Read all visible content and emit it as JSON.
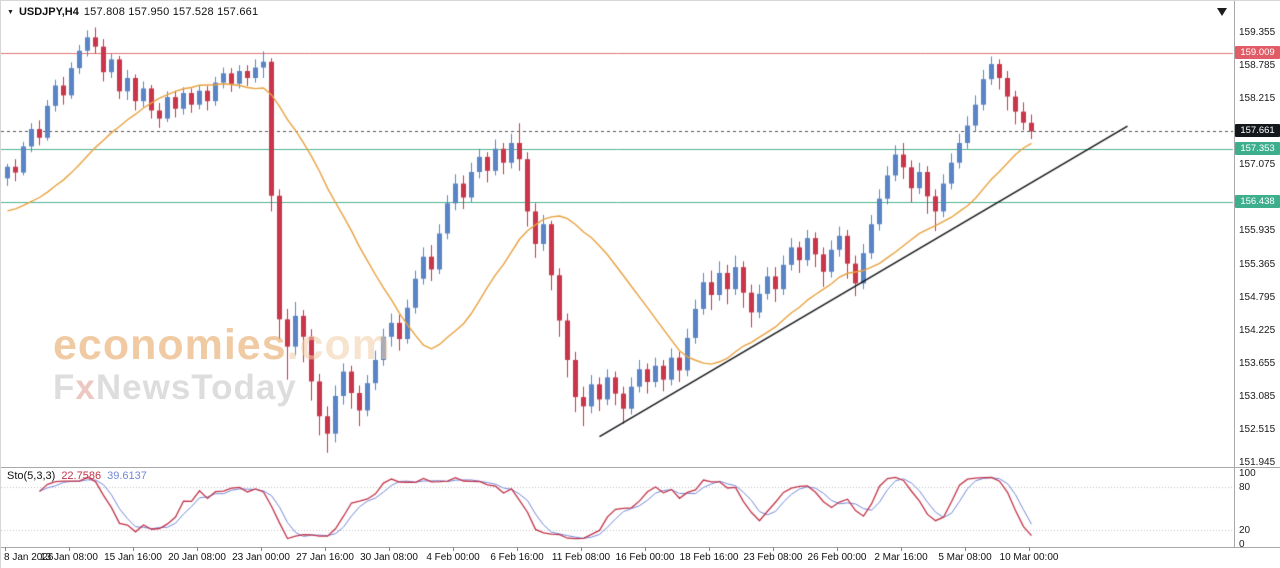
{
  "header": {
    "symbol": "USDJPY,H4",
    "ohlc": "157.808 157.950 157.528 157.661"
  },
  "watermark": {
    "brand": "economies",
    "brand_suffix": ".com",
    "sub_f": "F",
    "sub_x": "x",
    "sub_rest": "NewsToday"
  },
  "indicator": {
    "label": "Sto(5,3,3)",
    "value_main": "22.7586",
    "value_signal": "39.6137"
  },
  "chart_data": {
    "type": "candlestick",
    "title": "USDJPY,H4",
    "symbol": "USDJPY",
    "timeframe": "H4",
    "last_candle": {
      "open": "157.808",
      "high": "157.950",
      "low": "157.528",
      "close": "157.661"
    },
    "colors": {
      "up": "#5b84c6",
      "down": "#c9354b",
      "ma": "#e9a13e",
      "trend": "#15181c",
      "current_line": "#555555",
      "level_dotted": "#c0c0c0",
      "stoch_main": "#c2334a",
      "stoch_signal": "#7388d9"
    },
    "price_axis": {
      "max": 159.769,
      "min": 151.927,
      "ticks": [
        "159.355",
        "158.785",
        "158.215",
        "157.075",
        "155.935",
        "155.365",
        "154.795",
        "154.225",
        "153.655",
        "153.085",
        "152.515",
        "151.945"
      ],
      "badges": [
        {
          "text": "159.009",
          "color": "#e05c66"
        },
        {
          "text": "157.661",
          "color": "#14181c"
        },
        {
          "text": "157.353",
          "color": "#3eaf8c"
        },
        {
          "text": "156.438",
          "color": "#3eaf8c"
        }
      ]
    },
    "time_axis": {
      "label_every": 8,
      "labels": [
        "8 Jan 2026",
        "13 Jan 08:00",
        "15 Jan 16:00",
        "20 Jan 08:00",
        "23 Jan 00:00",
        "27 Jan 16:00",
        "30 Jan 08:00",
        "4 Feb 00:00",
        "6 Feb 16:00",
        "11 Feb 08:00",
        "16 Feb 00:00",
        "18 Feb 16:00",
        "23 Feb 08:00",
        "26 Feb 00:00",
        "2 Mar 16:00",
        "5 Mar 08:00",
        "10 Mar 00:00"
      ]
    },
    "overlays": {
      "ma": {
        "type": "sma",
        "period": 20,
        "seed": 156.25,
        "color": "#e9a13e"
      },
      "trendline": {
        "from": {
          "index": 74,
          "price": 152.4
        },
        "to": {
          "index": 140,
          "price": 157.75
        }
      },
      "hlines": [
        {
          "price": 159.009,
          "color": "#e57373"
        },
        {
          "price": 157.353,
          "color": "#4db391"
        },
        {
          "price": 156.438,
          "color": "#4db391"
        }
      ],
      "current_price": 157.661
    },
    "stochastic": {
      "k": 5,
      "d": 3,
      "slowing": 3,
      "scale_min": 0,
      "scale_max": 100,
      "levels": [
        80,
        20
      ],
      "axis_labels": [
        "100",
        "80",
        "20",
        "0"
      ],
      "axis_values": [
        100,
        80,
        20,
        0
      ],
      "current_main": "22.7586",
      "current_signal": "39.6137"
    },
    "candles": [
      [
        156.85,
        157.1,
        156.72,
        157.05
      ],
      [
        157.05,
        157.18,
        156.8,
        156.95
      ],
      [
        156.95,
        157.48,
        156.9,
        157.4
      ],
      [
        157.4,
        157.8,
        157.3,
        157.7
      ],
      [
        157.7,
        157.85,
        157.42,
        157.55
      ],
      [
        157.55,
        158.2,
        157.5,
        158.1
      ],
      [
        158.1,
        158.55,
        158.0,
        158.45
      ],
      [
        158.45,
        158.6,
        158.12,
        158.28
      ],
      [
        158.28,
        158.85,
        158.22,
        158.75
      ],
      [
        158.75,
        159.15,
        158.65,
        159.05
      ],
      [
        159.05,
        159.4,
        158.95,
        159.28
      ],
      [
        159.28,
        159.45,
        159.0,
        159.12
      ],
      [
        159.12,
        159.25,
        158.52,
        158.68
      ],
      [
        158.68,
        159.0,
        158.58,
        158.9
      ],
      [
        158.9,
        158.96,
        158.22,
        158.35
      ],
      [
        158.35,
        158.72,
        158.2,
        158.58
      ],
      [
        158.58,
        158.64,
        158.02,
        158.18
      ],
      [
        158.18,
        158.52,
        158.08,
        158.4
      ],
      [
        158.4,
        158.46,
        157.88,
        158.02
      ],
      [
        158.02,
        158.15,
        157.72,
        157.88
      ],
      [
        157.88,
        158.35,
        157.82,
        158.25
      ],
      [
        158.25,
        158.36,
        157.9,
        158.05
      ],
      [
        158.05,
        158.42,
        157.95,
        158.32
      ],
      [
        158.32,
        158.4,
        157.98,
        158.12
      ],
      [
        158.12,
        158.46,
        158.04,
        158.36
      ],
      [
        158.36,
        158.44,
        158.02,
        158.18
      ],
      [
        158.18,
        158.6,
        158.1,
        158.5
      ],
      [
        158.5,
        158.76,
        158.4,
        158.66
      ],
      [
        158.66,
        158.75,
        158.34,
        158.48
      ],
      [
        158.48,
        158.8,
        158.4,
        158.7
      ],
      [
        158.7,
        158.8,
        158.44,
        158.58
      ],
      [
        158.58,
        158.9,
        158.5,
        158.76
      ],
      [
        158.76,
        159.04,
        158.58,
        158.86
      ],
      [
        158.86,
        158.92,
        156.28,
        156.55
      ],
      [
        156.55,
        156.66,
        154.08,
        154.42
      ],
      [
        154.42,
        154.6,
        153.38,
        153.95
      ],
      [
        153.95,
        154.72,
        153.8,
        154.48
      ],
      [
        154.48,
        154.58,
        153.68,
        154.12
      ],
      [
        154.12,
        154.25,
        153.02,
        153.35
      ],
      [
        153.35,
        153.48,
        152.42,
        152.75
      ],
      [
        152.75,
        152.92,
        152.12,
        152.45
      ],
      [
        152.45,
        153.28,
        152.3,
        153.1
      ],
      [
        153.1,
        153.66,
        152.95,
        153.52
      ],
      [
        153.52,
        153.62,
        152.88,
        153.15
      ],
      [
        153.15,
        153.28,
        152.58,
        152.85
      ],
      [
        152.85,
        153.46,
        152.75,
        153.32
      ],
      [
        153.32,
        153.88,
        153.2,
        153.72
      ],
      [
        153.72,
        154.26,
        153.62,
        154.12
      ],
      [
        154.12,
        154.52,
        153.95,
        154.36
      ],
      [
        154.36,
        154.5,
        153.88,
        154.08
      ],
      [
        154.08,
        154.76,
        154.0,
        154.62
      ],
      [
        154.62,
        155.26,
        154.52,
        155.12
      ],
      [
        155.12,
        155.66,
        155.02,
        155.5
      ],
      [
        155.5,
        155.7,
        155.08,
        155.28
      ],
      [
        155.28,
        156.06,
        155.2,
        155.9
      ],
      [
        155.9,
        156.56,
        155.8,
        156.42
      ],
      [
        156.42,
        156.92,
        156.3,
        156.76
      ],
      [
        156.76,
        156.9,
        156.32,
        156.52
      ],
      [
        156.52,
        157.12,
        156.44,
        156.96
      ],
      [
        156.96,
        157.36,
        156.85,
        157.22
      ],
      [
        157.22,
        157.3,
        156.78,
        156.98
      ],
      [
        156.98,
        157.52,
        156.9,
        157.36
      ],
      [
        157.36,
        157.46,
        156.92,
        157.12
      ],
      [
        157.12,
        157.62,
        157.02,
        157.46
      ],
      [
        157.46,
        157.8,
        156.98,
        157.18
      ],
      [
        157.18,
        157.3,
        156.02,
        156.28
      ],
      [
        156.28,
        156.42,
        155.48,
        155.72
      ],
      [
        155.72,
        156.22,
        155.6,
        156.06
      ],
      [
        156.06,
        156.12,
        154.92,
        155.18
      ],
      [
        155.18,
        155.3,
        154.12,
        154.4
      ],
      [
        154.4,
        154.52,
        153.42,
        153.72
      ],
      [
        153.72,
        153.86,
        152.82,
        153.08
      ],
      [
        153.08,
        153.26,
        152.58,
        152.92
      ],
      [
        152.92,
        153.46,
        152.8,
        153.3
      ],
      [
        153.3,
        153.42,
        152.84,
        153.04
      ],
      [
        153.04,
        153.56,
        152.94,
        153.42
      ],
      [
        153.42,
        153.52,
        152.94,
        153.14
      ],
      [
        153.14,
        153.26,
        152.62,
        152.88
      ],
      [
        152.88,
        153.42,
        152.78,
        153.26
      ],
      [
        153.26,
        153.72,
        153.16,
        153.56
      ],
      [
        153.56,
        153.66,
        153.14,
        153.34
      ],
      [
        153.34,
        153.76,
        153.25,
        153.62
      ],
      [
        153.62,
        153.72,
        153.18,
        153.38
      ],
      [
        153.38,
        153.92,
        153.28,
        153.76
      ],
      [
        153.76,
        153.86,
        153.34,
        153.54
      ],
      [
        153.54,
        154.26,
        153.44,
        154.1
      ],
      [
        154.1,
        154.76,
        154.0,
        154.6
      ],
      [
        154.6,
        155.22,
        154.5,
        155.06
      ],
      [
        155.06,
        155.26,
        154.58,
        154.84
      ],
      [
        154.84,
        155.42,
        154.74,
        155.22
      ],
      [
        155.22,
        155.36,
        154.68,
        154.94
      ],
      [
        154.94,
        155.52,
        154.84,
        155.32
      ],
      [
        155.32,
        155.42,
        154.62,
        154.88
      ],
      [
        154.88,
        155.02,
        154.28,
        154.54
      ],
      [
        154.54,
        155.02,
        154.44,
        154.86
      ],
      [
        154.86,
        155.32,
        154.76,
        155.16
      ],
      [
        155.16,
        155.32,
        154.72,
        154.94
      ],
      [
        154.94,
        155.52,
        154.84,
        155.36
      ],
      [
        155.36,
        155.82,
        155.26,
        155.66
      ],
      [
        155.66,
        155.76,
        155.22,
        155.44
      ],
      [
        155.44,
        155.96,
        155.34,
        155.82
      ],
      [
        155.82,
        155.92,
        155.32,
        155.54
      ],
      [
        155.54,
        155.66,
        154.98,
        155.24
      ],
      [
        155.24,
        155.78,
        155.14,
        155.62
      ],
      [
        155.62,
        156.02,
        155.5,
        155.86
      ],
      [
        155.86,
        155.96,
        155.12,
        155.38
      ],
      [
        155.38,
        155.52,
        154.82,
        155.04
      ],
      [
        155.04,
        155.72,
        154.94,
        155.56
      ],
      [
        155.56,
        156.22,
        155.46,
        156.06
      ],
      [
        156.06,
        156.66,
        155.95,
        156.5
      ],
      [
        156.5,
        157.06,
        156.4,
        156.9
      ],
      [
        156.9,
        157.42,
        156.8,
        157.26
      ],
      [
        157.26,
        157.46,
        156.84,
        157.04
      ],
      [
        157.04,
        157.16,
        156.44,
        156.68
      ],
      [
        156.68,
        157.12,
        156.58,
        156.96
      ],
      [
        156.96,
        157.06,
        156.24,
        156.54
      ],
      [
        156.54,
        156.66,
        155.94,
        156.28
      ],
      [
        156.28,
        156.92,
        156.18,
        156.76
      ],
      [
        156.76,
        157.28,
        156.66,
        157.12
      ],
      [
        157.12,
        157.62,
        157.02,
        157.46
      ],
      [
        157.46,
        157.92,
        157.36,
        157.76
      ],
      [
        157.76,
        158.28,
        157.66,
        158.12
      ],
      [
        158.12,
        158.72,
        158.02,
        158.56
      ],
      [
        158.56,
        158.95,
        158.46,
        158.82
      ],
      [
        158.82,
        158.9,
        158.38,
        158.58
      ],
      [
        158.58,
        158.7,
        158.02,
        158.26
      ],
      [
        158.26,
        158.36,
        157.78,
        158.0
      ],
      [
        158.0,
        158.16,
        157.68,
        157.81
      ],
      [
        157.808,
        157.95,
        157.528,
        157.661
      ]
    ]
  }
}
